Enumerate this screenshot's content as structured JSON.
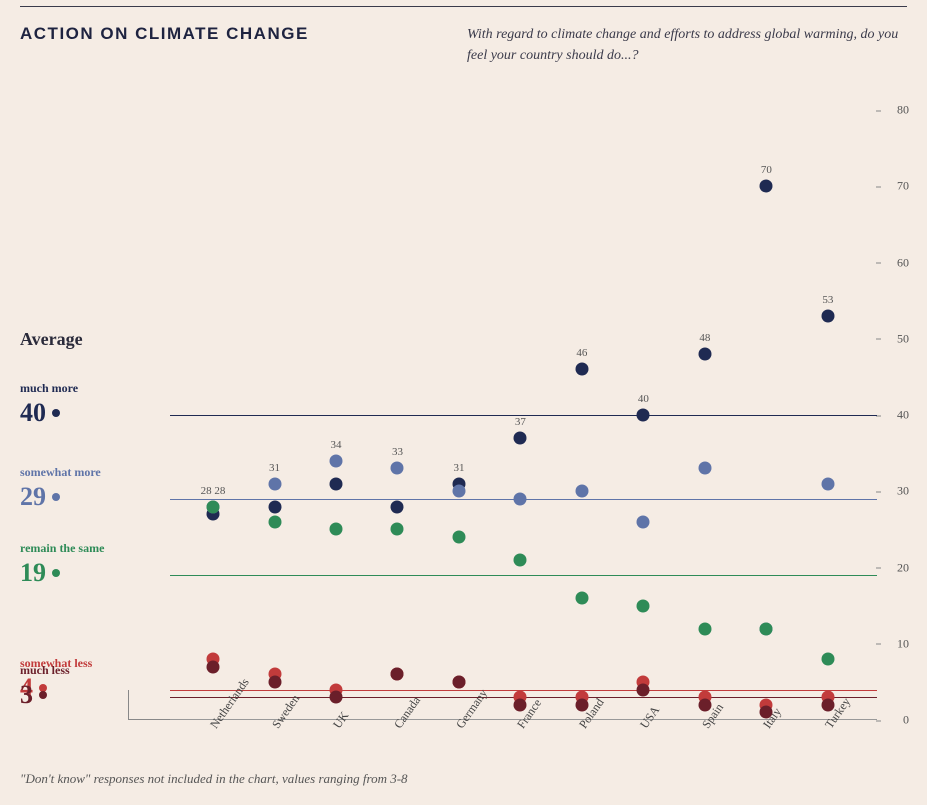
{
  "title": "ACTION ON CLIMATE CHANGE",
  "subtitle": "With regard to climate change and efforts to address global warming, do you feel your country should do...?",
  "footnote": "\"Don't know\" responses not included in the chart, values ranging from 3-8",
  "average_heading": "Average",
  "chart": {
    "type": "scatter",
    "background_color": "#f5ece4",
    "ylim": [
      0,
      80
    ],
    "ytick_step": 10,
    "yticks": [
      0,
      10,
      20,
      30,
      40,
      50,
      60,
      70,
      80
    ],
    "tick_fontsize": 12,
    "dot_radius": 6.5,
    "countries": [
      "Netherlands",
      "Sweden",
      "UK",
      "Canada",
      "Germany",
      "France",
      "Poland",
      "USA",
      "Spain",
      "Italy",
      "Turkey"
    ],
    "series": [
      {
        "key": "much_more",
        "label": "much more",
        "color": "#1f2a52",
        "average": 40,
        "values": [
          27,
          28,
          31,
          28,
          31,
          37,
          46,
          40,
          48,
          70,
          53
        ],
        "show_labels": [
          false,
          false,
          false,
          false,
          true,
          true,
          true,
          true,
          true,
          true,
          true
        ]
      },
      {
        "key": "somewhat_more",
        "label": "somewhat more",
        "color": "#5f74a8",
        "average": 29,
        "values": [
          28,
          31,
          34,
          33,
          30,
          29,
          30,
          26,
          33,
          12,
          31
        ],
        "show_labels": [
          true,
          true,
          true,
          true,
          false,
          false,
          false,
          false,
          false,
          false,
          false
        ],
        "label_texts": [
          "28 28",
          "31",
          "34",
          "33",
          "",
          "",
          "",
          "",
          "",
          "",
          ""
        ]
      },
      {
        "key": "remain_same",
        "label": "remain the same",
        "color": "#2e8b57",
        "average": 19,
        "values": [
          28,
          26,
          25,
          25,
          24,
          21,
          16,
          15,
          12,
          12,
          8
        ],
        "show_labels": [
          false,
          false,
          false,
          false,
          false,
          false,
          false,
          false,
          false,
          false,
          false
        ]
      },
      {
        "key": "somewhat_less",
        "label": "somewhat less",
        "color": "#c23b3b",
        "average": 4,
        "values": [
          8,
          6,
          4,
          6,
          5,
          3,
          3,
          5,
          3,
          2,
          3
        ],
        "show_labels": [
          false,
          false,
          false,
          false,
          false,
          false,
          false,
          false,
          false,
          false,
          false
        ]
      },
      {
        "key": "much_less",
        "label": "much less",
        "color": "#6b1f2a",
        "average": 3,
        "values": [
          7,
          5,
          3,
          6,
          5,
          2,
          2,
          4,
          2,
          1,
          2
        ],
        "show_labels": [
          false,
          false,
          false,
          false,
          false,
          false,
          false,
          false,
          false,
          false,
          false
        ]
      }
    ]
  }
}
